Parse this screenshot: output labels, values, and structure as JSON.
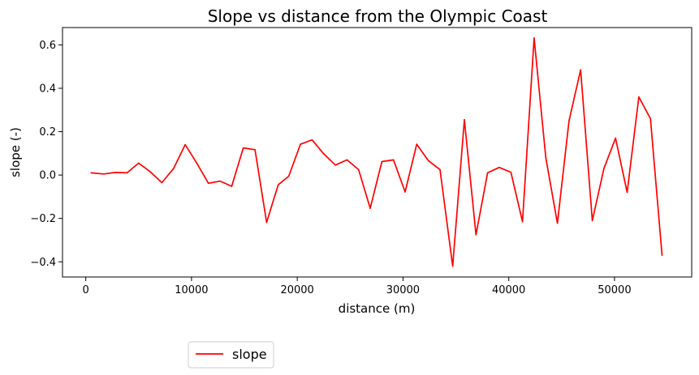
{
  "chart_data": {
    "type": "line",
    "title": "Slope vs distance from the Olympic Coast",
    "xlabel": "distance (m)",
    "ylabel": "slope (-)",
    "xlim": [
      -2200,
      57300
    ],
    "ylim": [
      -0.47,
      0.68
    ],
    "x_ticks": [
      0,
      10000,
      20000,
      30000,
      40000,
      50000
    ],
    "x_tick_labels": [
      "0",
      "10000",
      "20000",
      "30000",
      "40000",
      "50000"
    ],
    "y_ticks": [
      -0.4,
      -0.2,
      0.0,
      0.2,
      0.4,
      0.6
    ],
    "y_tick_labels": [
      "−0.4",
      "−0.2",
      "0.0",
      "0.2",
      "0.4",
      "0.6"
    ],
    "grid": false,
    "legend_position": "below-left",
    "series": [
      {
        "name": "slope",
        "color": "#ff0000",
        "x": [
          500,
          1700,
          2800,
          3900,
          5000,
          6100,
          7200,
          8300,
          9400,
          10500,
          11600,
          12700,
          13800,
          14900,
          16000,
          17100,
          18200,
          19200,
          20300,
          21400,
          22500,
          23600,
          24700,
          25800,
          26900,
          28000,
          29100,
          30200,
          31300,
          32400,
          33500,
          34700,
          35800,
          36900,
          38000,
          39100,
          40200,
          41300,
          42400,
          43500,
          44600,
          45700,
          46800,
          47900,
          49000,
          50100,
          51200,
          52300,
          53400,
          54500
        ],
        "y": [
          0.01,
          0.005,
          0.012,
          0.01,
          0.055,
          0.015,
          -0.035,
          0.03,
          0.14,
          0.055,
          -0.038,
          -0.028,
          -0.052,
          0.125,
          0.117,
          -0.218,
          -0.045,
          -0.005,
          0.142,
          0.162,
          0.098,
          0.046,
          0.07,
          0.025,
          -0.153,
          0.062,
          0.07,
          -0.078,
          0.142,
          0.066,
          0.025,
          -0.42,
          0.255,
          -0.275,
          0.01,
          0.035,
          0.013,
          -0.215,
          0.632,
          0.08,
          -0.222,
          0.25,
          0.485,
          -0.21,
          0.03,
          0.17,
          -0.08,
          0.36,
          0.26,
          -0.37
        ]
      }
    ]
  }
}
